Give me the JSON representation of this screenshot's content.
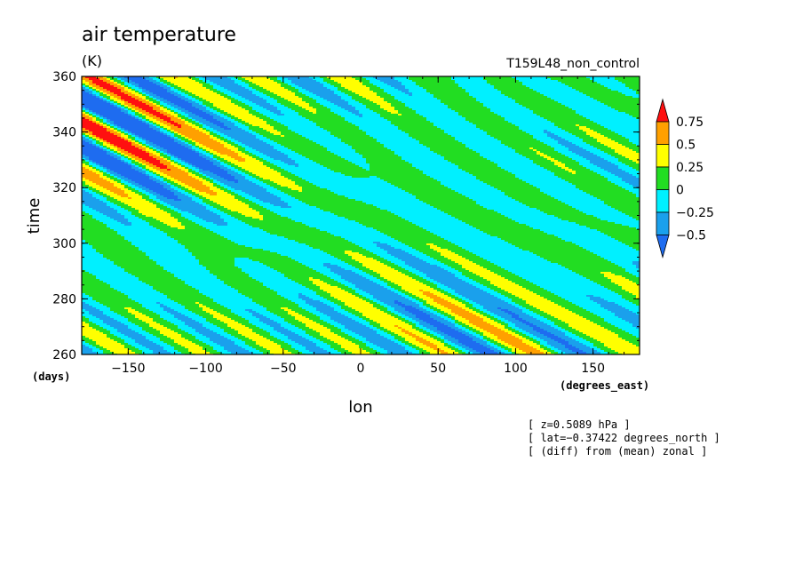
{
  "chart_data": {
    "type": "heatmap",
    "title": "air temperature",
    "units": "(K)",
    "run_label": "T159L48_non_control",
    "xlabel": "lon",
    "xunits": "(degrees_east)",
    "ylabel": "time",
    "yunits": "(days)",
    "xlim": [
      -180,
      180
    ],
    "ylim": [
      260,
      360
    ],
    "xticks": [
      -150,
      -100,
      -50,
      0,
      50,
      100,
      150
    ],
    "yticks": [
      260,
      280,
      300,
      320,
      340,
      360
    ],
    "xtick_labels": [
      "−150",
      "−100",
      "−50",
      "0",
      "50",
      "100",
      "150"
    ],
    "ytick_labels": [
      "260",
      "280",
      "300",
      "320",
      "340",
      "360"
    ],
    "colorbar": {
      "levels": [
        -0.5,
        -0.25,
        0,
        0.25,
        0.5,
        0.75
      ],
      "labels": [
        "−0.5",
        "−0.25",
        "0",
        "0.25",
        "0.5",
        "0.75"
      ],
      "colors": [
        "#1e6cf0",
        "#1aa0ec",
        "#00f0ff",
        "#22dd22",
        "#ffff00",
        "#ffa000",
        "#ff1010"
      ]
    },
    "field_description_note": "",
    "annotations": [
      "[ z=0.5089 hPa ]",
      "[ lat=−0.37422 degrees_north ]",
      "[ (diff) from (mean) zonal ]"
    ]
  }
}
